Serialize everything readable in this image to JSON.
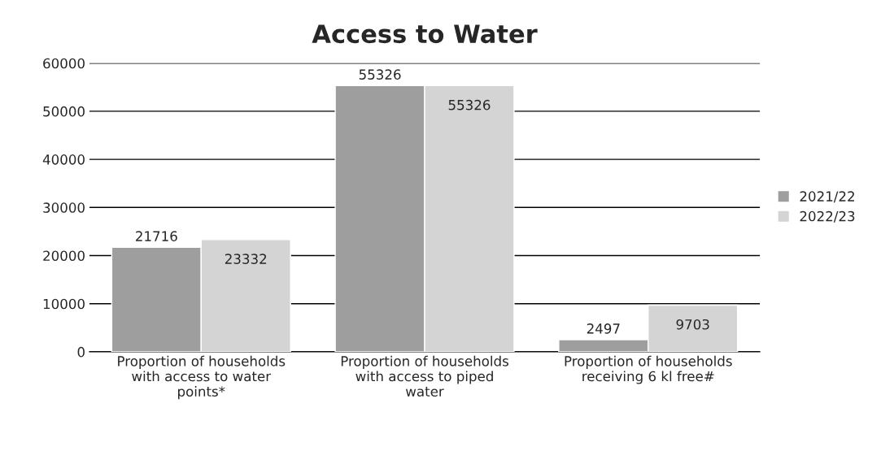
{
  "chart_data": {
    "type": "bar",
    "title": "Access to Water",
    "categories": [
      "Proportion of households\nwith access to water\npoints*",
      "Proportion of households\nwith access to piped\nwater",
      "Proportion of households\nreceiving 6 kl free#"
    ],
    "series": [
      {
        "name": "2021/22",
        "color": "#9e9e9e",
        "values": [
          21716,
          55326,
          2497
        ]
      },
      {
        "name": "2022/23",
        "color": "#d4d4d4",
        "values": [
          23332,
          55326,
          9703
        ]
      }
    ],
    "ylim": [
      0,
      60000
    ],
    "yticks": [
      0,
      10000,
      20000,
      30000,
      40000,
      50000,
      60000
    ],
    "grid": "y",
    "legend": "right",
    "data_labels": true
  }
}
